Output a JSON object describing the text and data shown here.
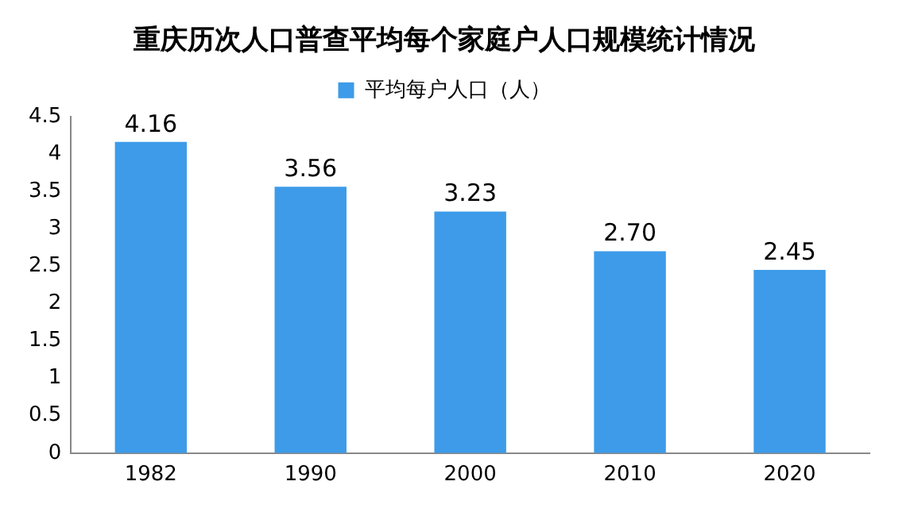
{
  "chart_data": {
    "type": "bar",
    "title": "重庆历次人口普查平均每个家庭户人口规模统计情况",
    "categories": [
      "1982",
      "1990",
      "2000",
      "2010",
      "2020"
    ],
    "series": [
      {
        "name": "平均每户人口（人）",
        "color": "#3d9be9",
        "values": [
          4.16,
          3.56,
          3.23,
          2.7,
          2.45
        ],
        "value_labels": [
          "4.16",
          "3.56",
          "3.23",
          "2.70",
          "2.45"
        ]
      }
    ],
    "ylim": [
      0,
      4.5
    ],
    "yticks": [
      0,
      0.5,
      1,
      1.5,
      2,
      2.5,
      3,
      3.5,
      4,
      4.5
    ],
    "grid": false,
    "legend": "top"
  }
}
